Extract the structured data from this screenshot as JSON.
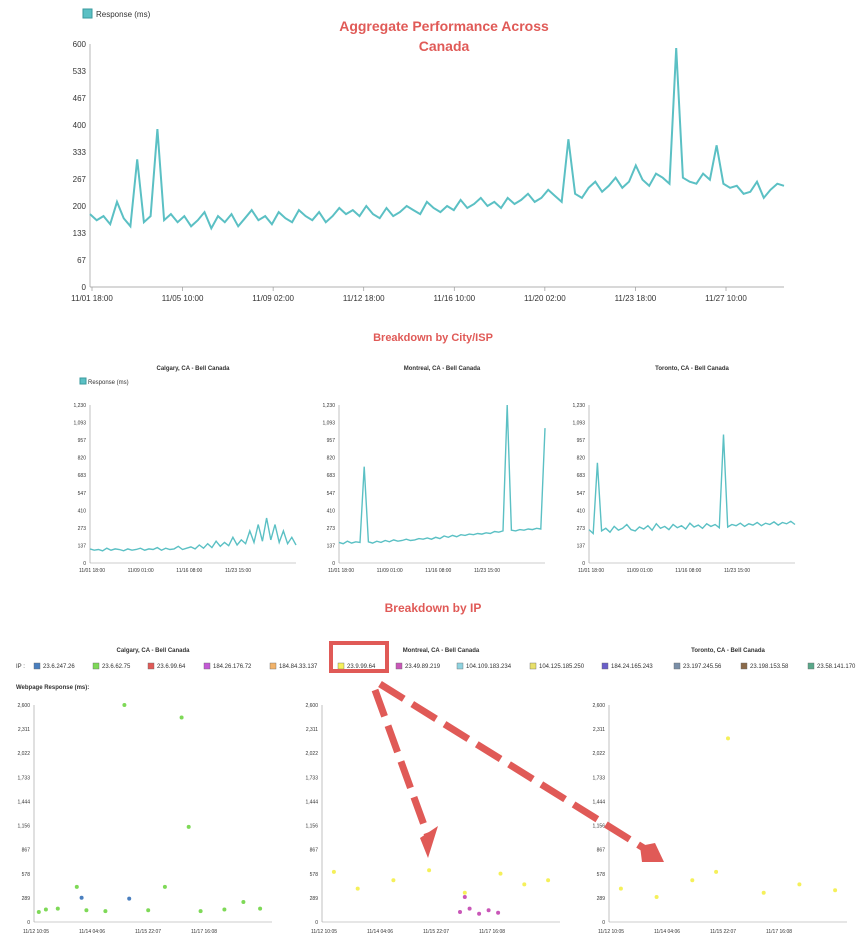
{
  "main_chart": {
    "title_line1": "Aggregate Performance Across",
    "title_line2": "Canada",
    "legend_label": "Response (ms)",
    "yticks": [
      "0",
      "67",
      "133",
      "200",
      "267",
      "333",
      "400",
      "467",
      "533",
      "600"
    ],
    "xticks": [
      "11/01 18:00",
      "11/05 10:00",
      "11/09 02:00",
      "11/12 18:00",
      "11/16 10:00",
      "11/20 02:00",
      "11/23 18:00",
      "11/27 10:00"
    ]
  },
  "city_section": {
    "heading": "Breakdown by City/ISP",
    "legend_label": "Response (ms)",
    "yticks": [
      "0",
      "137",
      "273",
      "410",
      "547",
      "683",
      "820",
      "957",
      "1,093",
      "1,230"
    ],
    "xticks": [
      "11/01 18:00",
      "11/09 01:00",
      "11/16 08:00",
      "11/23 15:00"
    ],
    "panels": [
      {
        "title": "Calgary, CA - Bell Canada"
      },
      {
        "title": "Montreal, CA - Bell Canada"
      },
      {
        "title": "Toronto, CA - Bell Canada"
      }
    ]
  },
  "ip_section": {
    "heading": "Breakdown by IP",
    "ip_label": "IP :",
    "yaxis_label": "Webpage Response (ms):",
    "legend": [
      {
        "ip": "23.6.247.26",
        "color": "#4a7fbf"
      },
      {
        "ip": "23.6.62.75",
        "color": "#7ed957"
      },
      {
        "ip": "23.6.99.64",
        "color": "#e05a57"
      },
      {
        "ip": "184.26.176.72",
        "color": "#c45ad6"
      },
      {
        "ip": "184.84.33.137",
        "color": "#f2b36a"
      },
      {
        "ip": "23.9.99.64",
        "color": "#f5f05a"
      },
      {
        "ip": "23.49.89.219",
        "color": "#c957b8"
      },
      {
        "ip": "104.109.183.234",
        "color": "#8fd3e0"
      },
      {
        "ip": "104.125.185.250",
        "color": "#e8e06a"
      },
      {
        "ip": "184.24.165.243",
        "color": "#6a5fc9"
      },
      {
        "ip": "23.197.245.56",
        "color": "#7a8fa8"
      },
      {
        "ip": "23.198.153.58",
        "color": "#8a6a4a"
      },
      {
        "ip": "23.58.141.170",
        "color": "#5aa88a"
      }
    ],
    "yticks": [
      "0",
      "289",
      "578",
      "867",
      "1,156",
      "1,444",
      "1,733",
      "2,022",
      "2,311",
      "2,600"
    ],
    "xticks": [
      "11/12 10:05",
      "11/14 04:06",
      "11/15 22:07",
      "11/17 16:08"
    ],
    "panels": [
      {
        "title": "Calgary, CA - Bell Canada"
      },
      {
        "title": "Montreal, CA - Bell Canada"
      },
      {
        "title": "Toronto, CA - Bell Canada"
      }
    ]
  },
  "chart_data": [
    {
      "type": "line",
      "title": "Aggregate Performance Across Canada",
      "ylim": [
        0,
        600
      ],
      "series": [
        {
          "name": "Response (ms)",
          "color": "#5bc0c4",
          "values": [
            180,
            165,
            175,
            155,
            210,
            170,
            150,
            315,
            160,
            175,
            390,
            165,
            180,
            160,
            175,
            150,
            165,
            185,
            145,
            175,
            160,
            180,
            150,
            170,
            190,
            165,
            175,
            155,
            185,
            170,
            160,
            190,
            175,
            165,
            185,
            160,
            175,
            195,
            180,
            190,
            175,
            200,
            180,
            170,
            195,
            175,
            185,
            200,
            190,
            180,
            210,
            195,
            185,
            200,
            190,
            215,
            195,
            205,
            220,
            200,
            210,
            195,
            220,
            205,
            215,
            230,
            210,
            220,
            240,
            225,
            210,
            365,
            230,
            220,
            245,
            260,
            235,
            250,
            270,
            245,
            260,
            300,
            265,
            250,
            280,
            270,
            255,
            590,
            270,
            260,
            255,
            280,
            265,
            350,
            255,
            245,
            250,
            230,
            235,
            260,
            220,
            240,
            255,
            250
          ]
        }
      ]
    },
    {
      "type": "line",
      "title": "Calgary, CA - Bell Canada",
      "ylim": [
        0,
        1230
      ],
      "series": [
        {
          "name": "Response (ms)",
          "color": "#5bc0c4",
          "values": [
            110,
            100,
            105,
            95,
            115,
            100,
            110,
            105,
            95,
            110,
            100,
            105,
            115,
            100,
            110,
            105,
            120,
            100,
            115,
            105,
            110,
            130,
            105,
            115,
            125,
            110,
            140,
            115,
            150,
            120,
            170,
            130,
            160,
            135,
            200,
            140,
            180,
            150,
            250,
            160,
            300,
            170,
            350,
            180,
            300,
            160,
            250,
            150,
            200,
            140
          ]
        }
      ]
    },
    {
      "type": "line",
      "title": "Montreal, CA - Bell Canada",
      "ylim": [
        0,
        1230
      ],
      "series": [
        {
          "name": "Response (ms)",
          "color": "#5bc0c4",
          "values": [
            160,
            150,
            170,
            155,
            165,
            160,
            750,
            165,
            155,
            170,
            160,
            175,
            165,
            180,
            170,
            175,
            185,
            175,
            180,
            190,
            185,
            195,
            185,
            200,
            190,
            210,
            200,
            215,
            205,
            220,
            215,
            225,
            220,
            230,
            225,
            235,
            230,
            245,
            240,
            250,
            1230,
            255,
            250,
            260,
            255,
            265,
            260,
            270,
            265,
            1050
          ]
        }
      ]
    },
    {
      "type": "line",
      "title": "Toronto, CA - Bell Canada",
      "ylim": [
        0,
        1230
      ],
      "series": [
        {
          "name": "Response (ms)",
          "color": "#5bc0c4",
          "values": [
            260,
            230,
            780,
            250,
            270,
            240,
            285,
            255,
            270,
            300,
            260,
            250,
            280,
            265,
            290,
            255,
            305,
            270,
            285,
            260,
            300,
            275,
            290,
            265,
            310,
            280,
            295,
            270,
            305,
            285,
            300,
            275,
            1000,
            280,
            300,
            290,
            310,
            285,
            305,
            295,
            315,
            290,
            310,
            300,
            320,
            295,
            315,
            305,
            325,
            300
          ]
        }
      ]
    },
    {
      "type": "scatter",
      "title": "Calgary, CA - Bell Canada",
      "ylim": [
        0,
        2600
      ],
      "series": [
        {
          "name": "23.6.62.75",
          "color": "#7ed957",
          "points": [
            [
              0.02,
              120
            ],
            [
              0.05,
              150
            ],
            [
              0.1,
              160
            ],
            [
              0.18,
              420
            ],
            [
              0.22,
              140
            ],
            [
              0.3,
              130
            ],
            [
              0.38,
              2600
            ],
            [
              0.48,
              140
            ],
            [
              0.55,
              420
            ],
            [
              0.62,
              2450
            ],
            [
              0.65,
              1140
            ],
            [
              0.7,
              130
            ],
            [
              0.8,
              150
            ],
            [
              0.88,
              240
            ],
            [
              0.95,
              160
            ]
          ]
        },
        {
          "name": "23.6.247.26",
          "color": "#4a7fbf",
          "points": [
            [
              0.2,
              290
            ],
            [
              0.4,
              280
            ]
          ]
        }
      ]
    },
    {
      "type": "scatter",
      "title": "Montreal, CA - Bell Canada",
      "ylim": [
        0,
        2600
      ],
      "series": [
        {
          "name": "23.9.99.64",
          "color": "#f5f05a",
          "points": [
            [
              0.05,
              600
            ],
            [
              0.15,
              400
            ],
            [
              0.3,
              500
            ],
            [
              0.45,
              620
            ],
            [
              0.6,
              350
            ],
            [
              0.75,
              580
            ],
            [
              0.85,
              450
            ],
            [
              0.95,
              500
            ]
          ]
        },
        {
          "name": "23.49.89.219",
          "color": "#c957b8",
          "points": [
            [
              0.58,
              120
            ],
            [
              0.62,
              160
            ],
            [
              0.66,
              100
            ],
            [
              0.7,
              140
            ],
            [
              0.74,
              110
            ],
            [
              0.6,
              300
            ]
          ]
        }
      ]
    },
    {
      "type": "scatter",
      "title": "Toronto, CA - Bell Canada",
      "ylim": [
        0,
        2600
      ],
      "series": [
        {
          "name": "23.9.99.64",
          "color": "#f5f05a",
          "points": [
            [
              0.05,
              400
            ],
            [
              0.2,
              300
            ],
            [
              0.35,
              500
            ],
            [
              0.5,
              2200
            ],
            [
              0.45,
              600
            ],
            [
              0.65,
              350
            ],
            [
              0.8,
              450
            ],
            [
              0.95,
              380
            ]
          ]
        }
      ]
    }
  ],
  "annotations": {
    "highlight_box_color": "#e05a57",
    "arrow_color": "#e05a57",
    "title_color": "#e05a57"
  }
}
